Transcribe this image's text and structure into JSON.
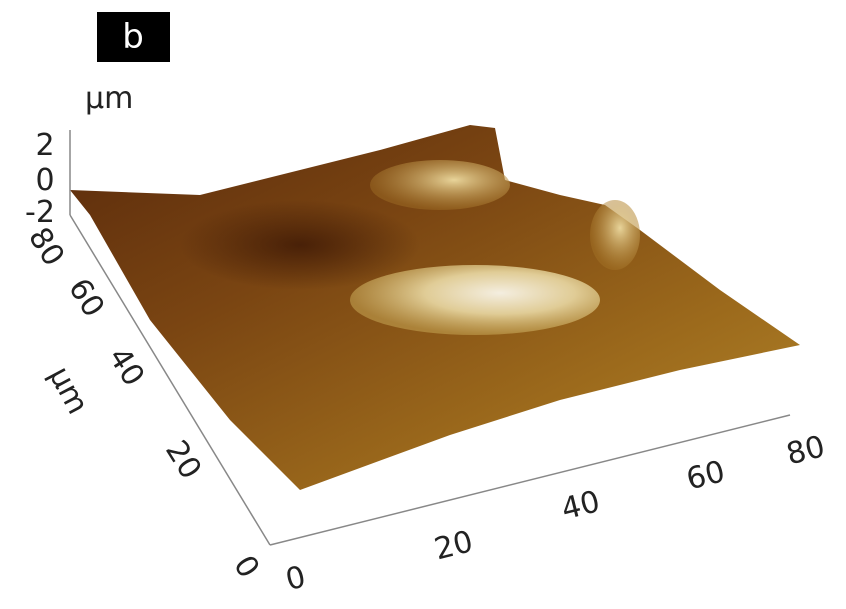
{
  "panel_label": "b",
  "z_axis": {
    "label": "µm",
    "ticks": [
      "2",
      "0",
      "-2"
    ]
  },
  "y_axis": {
    "label": "µm",
    "ticks": [
      "0",
      "20",
      "40",
      "60",
      "80"
    ]
  },
  "x_axis": {
    "ticks": [
      "0",
      "20",
      "40",
      "60",
      "80"
    ]
  }
}
